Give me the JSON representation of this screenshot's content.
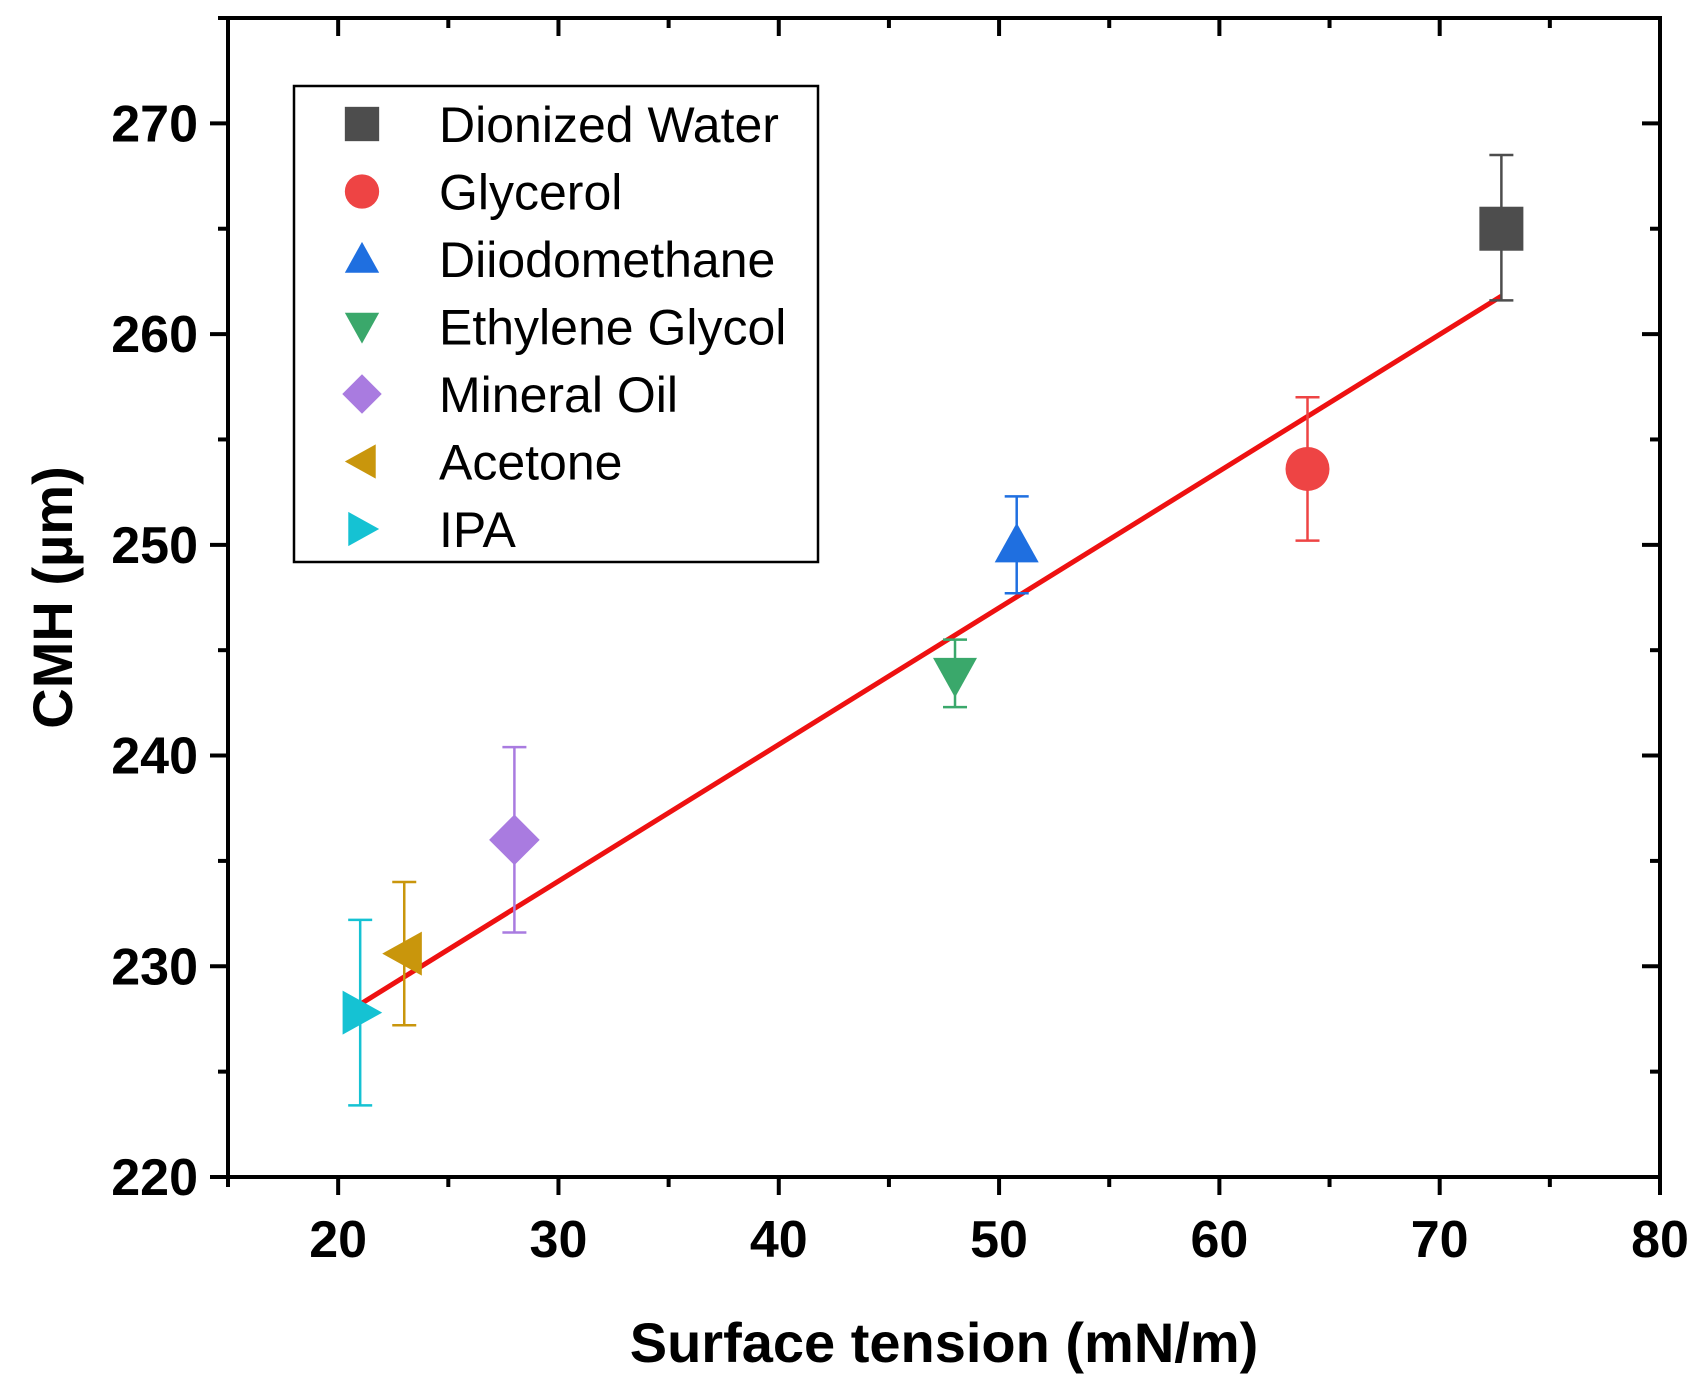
{
  "chart_data": {
    "type": "scatter",
    "title": "",
    "xlabel": "Surface tension (mN/m)",
    "ylabel": "CMH (µm)",
    "xlim": [
      15,
      80
    ],
    "ylim": [
      220,
      275
    ],
    "xticks": [
      20,
      30,
      40,
      50,
      60,
      70,
      80
    ],
    "yticks": [
      220,
      230,
      240,
      250,
      260,
      270
    ],
    "x_tick_labels": [
      "20",
      "30",
      "40",
      "50",
      "60",
      "70",
      "80"
    ],
    "y_tick_labels": [
      "220",
      "230",
      "240",
      "250",
      "260",
      "270"
    ],
    "legend_position": "top-left",
    "series": [
      {
        "name": "Dionized Water",
        "marker": "square",
        "color": "#4d4d4d",
        "x": 72.8,
        "y": 265.0,
        "yerr_low": 261.6,
        "yerr_high": 268.5
      },
      {
        "name": "Glycerol",
        "marker": "circle",
        "color": "#ee4444",
        "x": 64.0,
        "y": 253.6,
        "yerr_low": 250.2,
        "yerr_high": 257.0
      },
      {
        "name": "Diiodomethane",
        "marker": "triangle-up",
        "color": "#1f6fe0",
        "x": 50.8,
        "y": 250.0,
        "yerr_low": 247.7,
        "yerr_high": 252.3
      },
      {
        "name": "Ethylene Glycol",
        "marker": "triangle-down",
        "color": "#3aa86b",
        "x": 48.0,
        "y": 243.8,
        "yerr_low": 242.3,
        "yerr_high": 245.5
      },
      {
        "name": "Mineral Oil",
        "marker": "diamond",
        "color": "#a97be0",
        "x": 28.0,
        "y": 236.0,
        "yerr_low": 231.6,
        "yerr_high": 240.4
      },
      {
        "name": "Acetone",
        "marker": "triangle-left",
        "color": "#c9960c",
        "x": 23.0,
        "y": 230.6,
        "yerr_low": 227.2,
        "yerr_high": 234.0
      },
      {
        "name": "IPA",
        "marker": "triangle-right",
        "color": "#15c2d3",
        "x": 21.0,
        "y": 227.8,
        "yerr_low": 223.4,
        "yerr_high": 232.2
      }
    ],
    "fit_line": {
      "x": [
        21.0,
        72.8
      ],
      "y": [
        228.2,
        261.8
      ],
      "color": "#ee1111"
    }
  }
}
